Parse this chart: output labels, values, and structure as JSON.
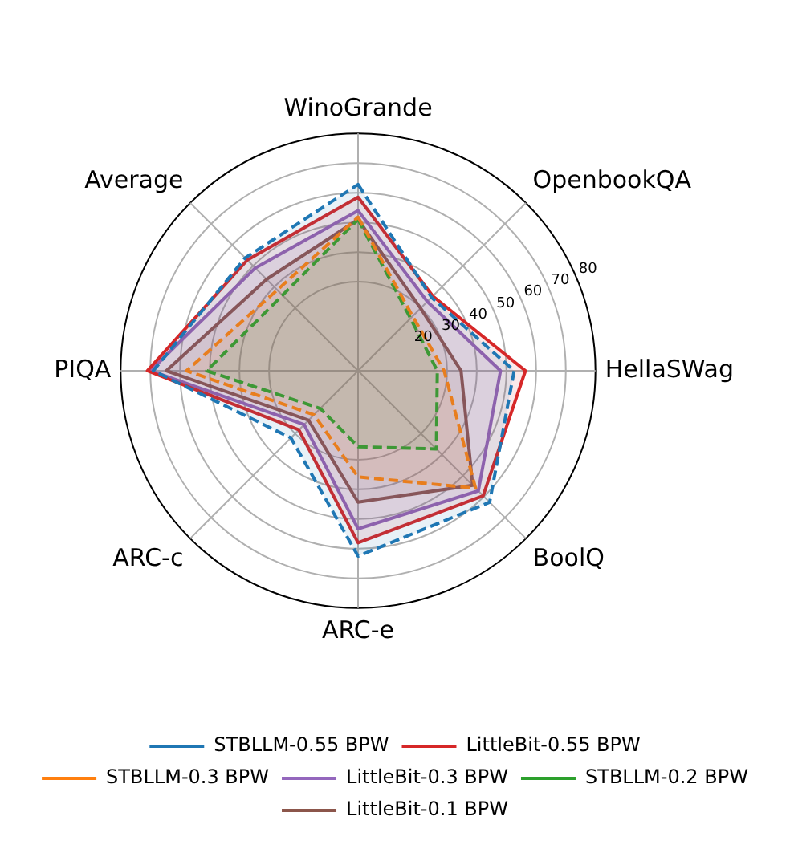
{
  "chart_data": {
    "type": "radar",
    "categories": [
      "WinoGrande",
      "OpenbookQA",
      "HellaSWag",
      "BoolQ",
      "ARC-e",
      "ARC-c",
      "PIQA",
      "Average"
    ],
    "ylim": [
      0,
      80
    ],
    "yticks": [
      20,
      30,
      40,
      50,
      60,
      70,
      80
    ],
    "grid": true,
    "legend": "bottom",
    "marker": "none",
    "series": [
      {
        "name": "STBLLM-0.55 BPW",
        "color": "#1f77b4",
        "line_style": "dashed",
        "values": [
          62.8,
          35,
          52.6,
          62.7,
          62.5,
          32,
          69,
          53.8
        ]
      },
      {
        "name": "STBLLM-0.3 BPW",
        "color": "#ff7f0e",
        "line_style": "dashed",
        "values": [
          51.8,
          26,
          29,
          56,
          35.8,
          21,
          57.8,
          38.5
        ]
      },
      {
        "name": "STBLLM-0.2 BPW",
        "color": "#2ca02c",
        "line_style": "dashed",
        "values": [
          51,
          25,
          26.7,
          37.3,
          25.6,
          18,
          51,
          36
        ]
      },
      {
        "name": "LittleBit-0.55 BPW",
        "color": "#d62728",
        "line_style": "solid",
        "values": [
          58.5,
          35.6,
          56.4,
          59.6,
          58,
          28.2,
          71,
          52.8
        ]
      },
      {
        "name": "LittleBit-0.3 BPW",
        "color": "#9467bd",
        "line_style": "solid",
        "values": [
          54,
          33,
          48,
          57.3,
          53.3,
          25.7,
          70,
          49
        ]
      },
      {
        "name": "LittleBit-0.1 BPW",
        "color": "#8c564b",
        "line_style": "solid",
        "values": [
          51,
          29.8,
          34.7,
          54.6,
          44.3,
          23.6,
          64.6,
          43.6
        ]
      }
    ]
  }
}
